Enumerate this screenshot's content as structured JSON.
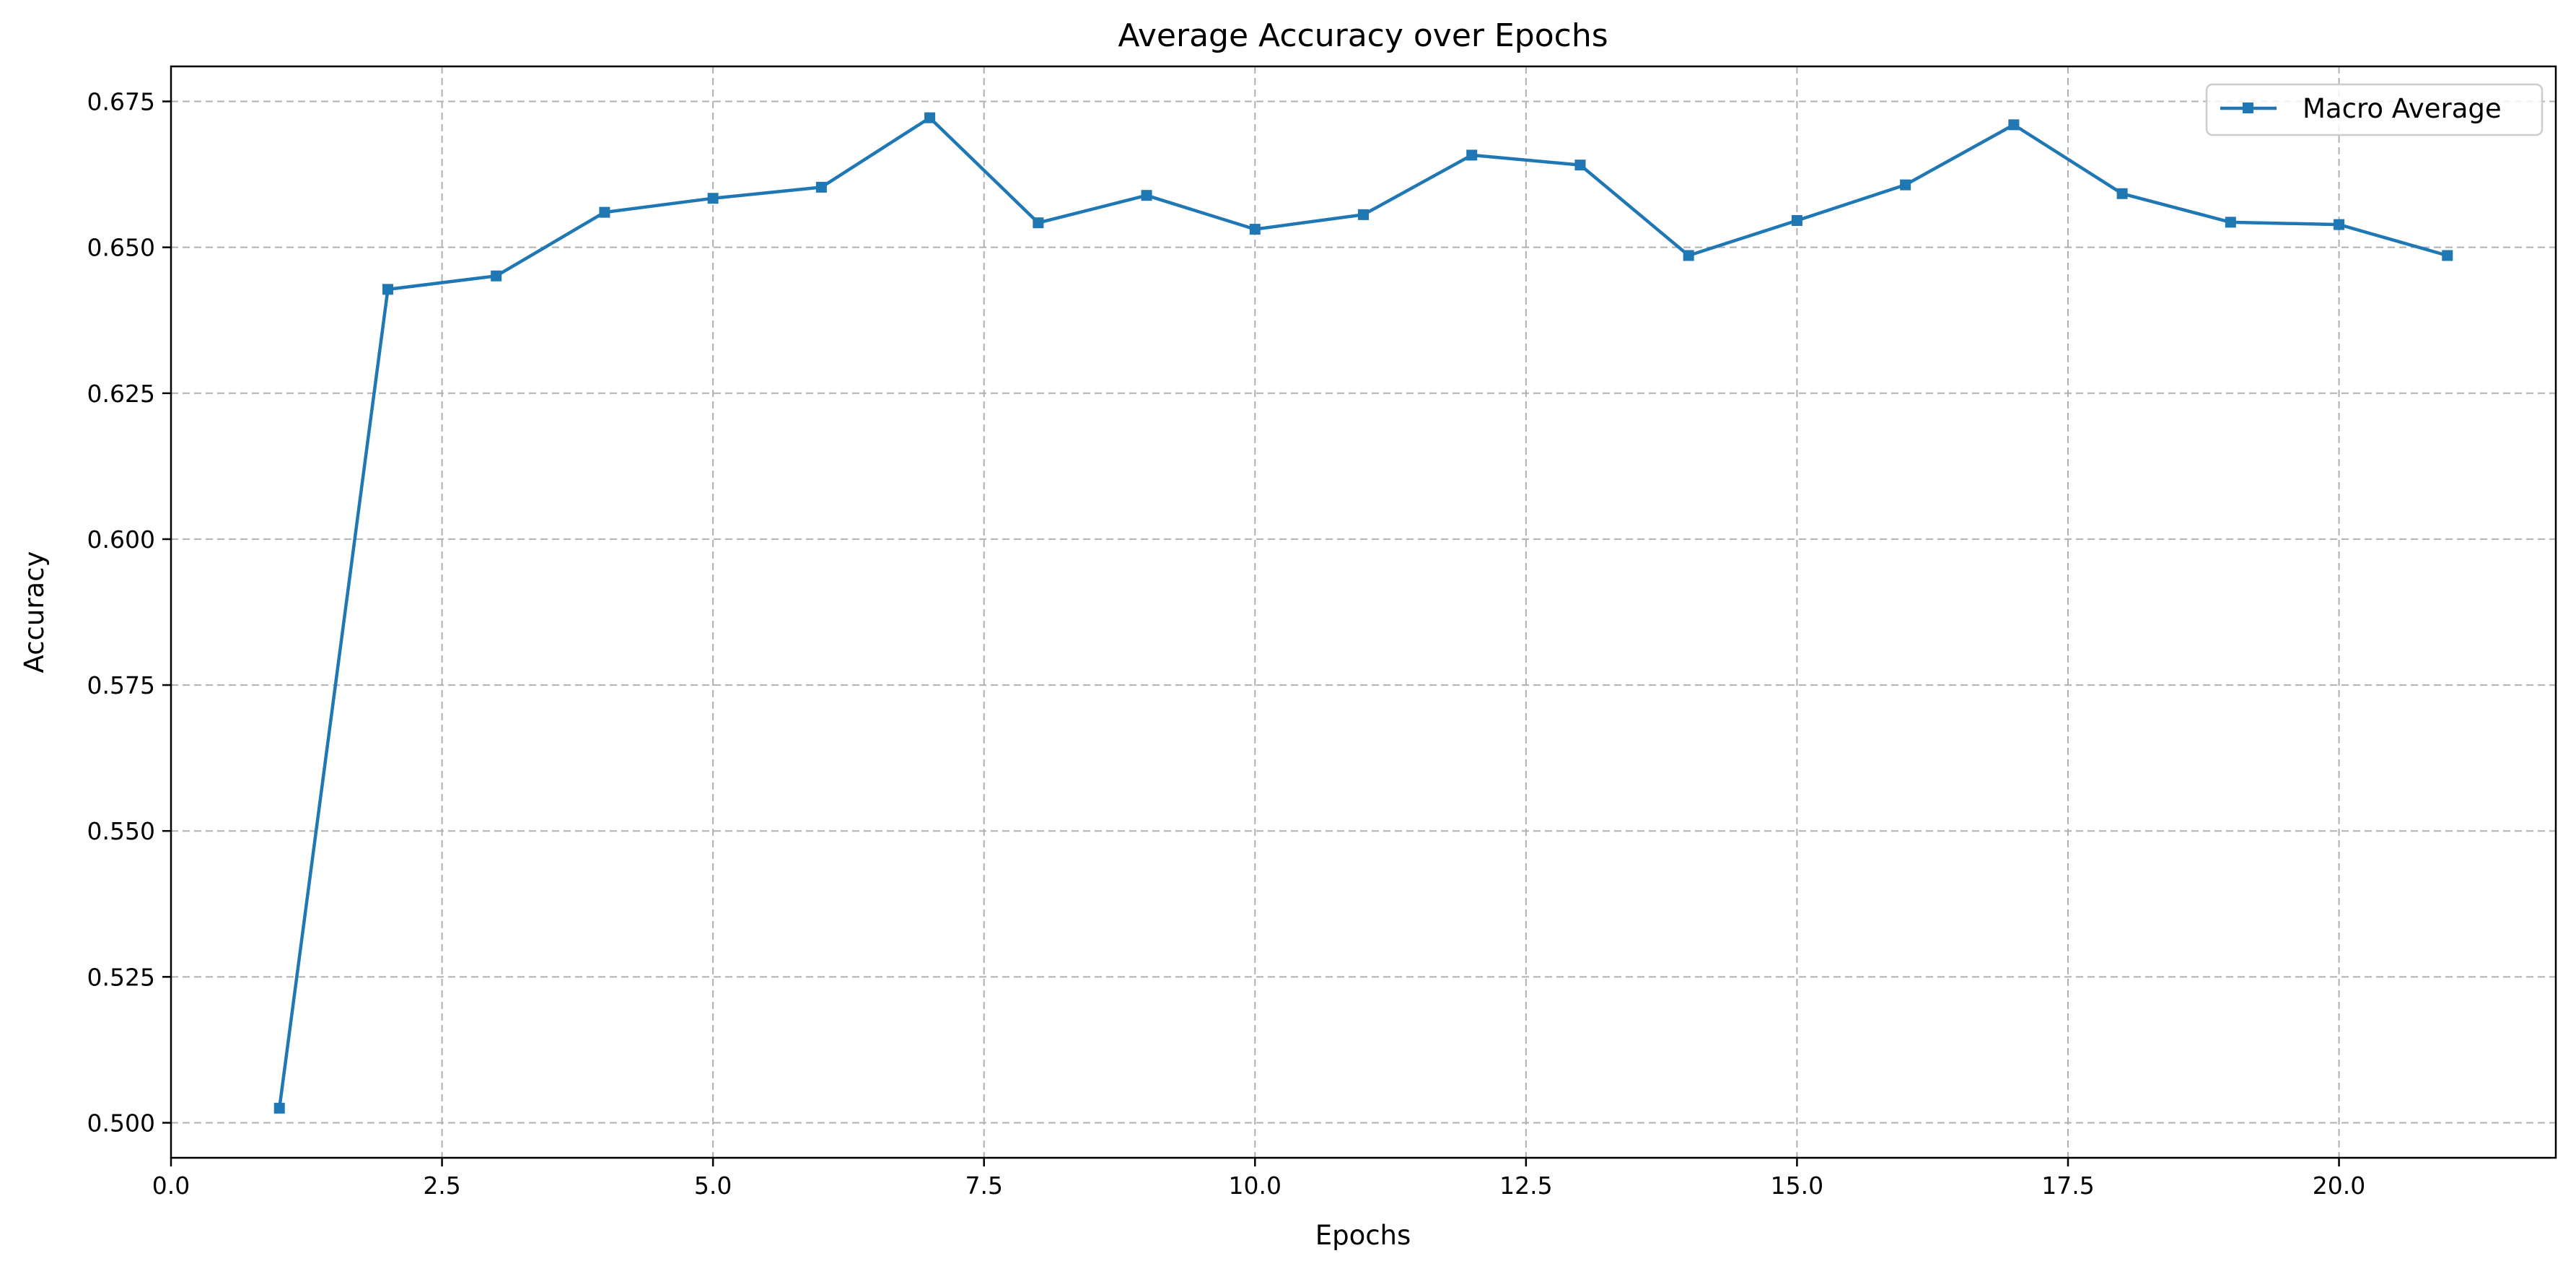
{
  "chart_data": {
    "type": "line",
    "title": "Average Accuracy over Epochs",
    "xlabel": "Epochs",
    "ylabel": "Accuracy",
    "xlim": [
      0,
      22
    ],
    "ylim": [
      0.494,
      0.681
    ],
    "xticks": [
      0.0,
      2.5,
      5.0,
      7.5,
      10.0,
      12.5,
      15.0,
      17.5,
      20.0
    ],
    "xtick_labels": [
      "0.0",
      "2.5",
      "5.0",
      "7.5",
      "10.0",
      "12.5",
      "15.0",
      "17.5",
      "20.0"
    ],
    "yticks": [
      0.5,
      0.525,
      0.55,
      0.575,
      0.6,
      0.625,
      0.65,
      0.675
    ],
    "ytick_labels": [
      "0.500",
      "0.525",
      "0.550",
      "0.575",
      "0.600",
      "0.625",
      "0.650",
      "0.675"
    ],
    "grid": true,
    "legend_position": "top-right",
    "series": [
      {
        "name": "Macro Average",
        "color": "#1f77b4",
        "marker": "square",
        "x": [
          1,
          2,
          3,
          4,
          5,
          6,
          7,
          8,
          9,
          10,
          11,
          12,
          13,
          14,
          15,
          16,
          17,
          18,
          19,
          20,
          21
        ],
        "y": [
          0.5025,
          0.6428,
          0.6451,
          0.656,
          0.6584,
          0.6603,
          0.6722,
          0.6542,
          0.6589,
          0.6531,
          0.6556,
          0.6658,
          0.6641,
          0.6486,
          0.6546,
          0.6607,
          0.671,
          0.6592,
          0.6543,
          0.6539,
          0.6486
        ]
      }
    ]
  }
}
